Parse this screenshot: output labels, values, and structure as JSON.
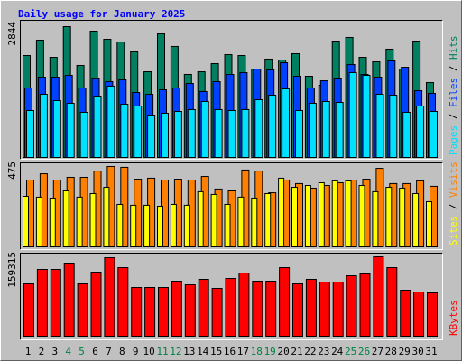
{
  "legend_separator": " / ",
  "chart_data": [
    {
      "type": "bar",
      "title": "Daily usage for January 2025",
      "ylim": [
        0,
        2844
      ],
      "yticks": [
        2844
      ],
      "series": [
        {
          "name": "Hits",
          "color": "#008060",
          "values": [
            2216,
            2550,
            2177,
            2844,
            2001,
            2746,
            2569,
            2511,
            2295,
            1863,
            2687,
            2413,
            1805,
            1863,
            2040,
            2236,
            2216,
            1922,
            2138,
            2118,
            2256,
            1765,
            1569,
            2530,
            2609,
            2177,
            2079,
            2354,
            1922,
            2530,
            1628
          ]
        },
        {
          "name": "Files",
          "color": "#0040ff",
          "values": [
            1510,
            1746,
            1746,
            1785,
            1510,
            1726,
            1648,
            1687,
            1412,
            1373,
            1471,
            1510,
            1608,
            1432,
            1648,
            1804,
            1844,
            1922,
            1903,
            2059,
            1765,
            1510,
            1667,
            1726,
            2020,
            1804,
            1746,
            2099,
            1961,
            1451,
            1393
          ]
        },
        {
          "name": "Pages",
          "color": "#00e0ff",
          "values": [
            1020,
            1373,
            1236,
            1177,
            981,
            1334,
            1550,
            1157,
            1118,
            922,
            961,
            1000,
            1040,
            1216,
            1040,
            1020,
            1040,
            1255,
            1353,
            1491,
            1020,
            1177,
            1216,
            1196,
            1844,
            1785,
            1373,
            1353,
            981,
            1118,
            1000
          ]
        }
      ]
    },
    {
      "type": "bar",
      "ylim": [
        0,
        475
      ],
      "yticks": [
        475
      ],
      "series": [
        {
          "name": "Visits",
          "color": "#ff8000",
          "values": [
            395,
            432,
            395,
            411,
            411,
            448,
            475,
            470,
            400,
            406,
            395,
            400,
            395,
            416,
            342,
            331,
            454,
            448,
            320,
            395,
            374,
            347,
            363,
            379,
            395,
            400,
            464,
            374,
            374,
            390,
            358
          ]
        },
        {
          "name": "Sites",
          "color": "#ffff00",
          "values": [
            299,
            294,
            288,
            331,
            294,
            315,
            352,
            251,
            246,
            246,
            240,
            251,
            246,
            326,
            310,
            251,
            294,
            288,
            315,
            406,
            352,
            363,
            379,
            390,
            390,
            363,
            326,
            352,
            347,
            315,
            267
          ]
        }
      ]
    },
    {
      "type": "bar",
      "ylim": [
        0,
        159315
      ],
      "yticks": [
        159315
      ],
      "categories": [
        "1",
        "2",
        "3",
        "4",
        "5",
        "6",
        "7",
        "8",
        "9",
        "10",
        "11",
        "12",
        "13",
        "14",
        "15",
        "16",
        "17",
        "18",
        "19",
        "20",
        "21",
        "22",
        "23",
        "24",
        "25",
        "26",
        "27",
        "28",
        "29",
        "30",
        "31"
      ],
      "category_colors": [
        "#000000",
        "#000000",
        "#000000",
        "#008040",
        "#008040",
        "#000000",
        "#000000",
        "#000000",
        "#000000",
        "#000000",
        "#008040",
        "#008040",
        "#000000",
        "#000000",
        "#000000",
        "#000000",
        "#000000",
        "#008040",
        "#008040",
        "#000000",
        "#000000",
        "#000000",
        "#000000",
        "#000000",
        "#008040",
        "#008040",
        "#000000",
        "#000000",
        "#000000",
        "#000000",
        "#000000"
      ],
      "series": [
        {
          "name": "KBytes",
          "color": "#ff0000",
          "values": [
            105003,
            133970,
            133970,
            146642,
            105003,
            128538,
            157505,
            137590,
            97762,
            97762,
            97762,
            110434,
            103193,
            114055,
            95951,
            115866,
            126728,
            110434,
            110434,
            137590,
            105003,
            114055,
            108624,
            108624,
            121297,
            124918,
            159315,
            137590,
            92330,
            88710,
            86899
          ]
        }
      ]
    }
  ]
}
